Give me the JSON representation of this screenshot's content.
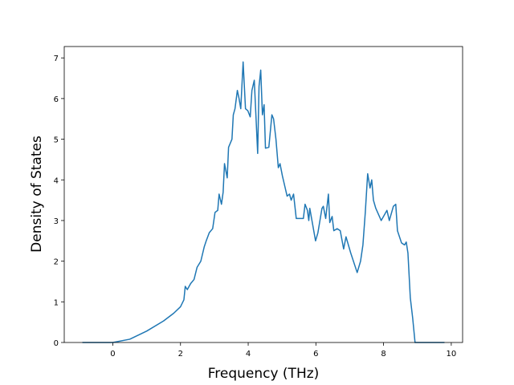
{
  "chart_data": {
    "type": "line",
    "x_label": "Frequency (THz)",
    "y_label": "Density of States",
    "x": [
      -0.9,
      0,
      0.5,
      1.0,
      1.5,
      1.8,
      2.0,
      2.1,
      2.14,
      2.2,
      2.3,
      2.4,
      2.49,
      2.6,
      2.7,
      2.76,
      2.85,
      2.95,
      3.02,
      3.1,
      3.14,
      3.21,
      3.26,
      3.3,
      3.38,
      3.42,
      3.52,
      3.56,
      3.61,
      3.68,
      3.73,
      3.78,
      3.85,
      3.92,
      3.99,
      4.06,
      4.11,
      4.18,
      4.28,
      4.32,
      4.37,
      4.42,
      4.47,
      4.51,
      4.61,
      4.7,
      4.75,
      4.82,
      4.89,
      4.94,
      5.01,
      5.08,
      5.15,
      5.22,
      5.27,
      5.34,
      5.42,
      5.63,
      5.68,
      5.75,
      5.79,
      5.82,
      5.99,
      6.06,
      6.18,
      6.22,
      6.29,
      6.37,
      6.41,
      6.48,
      6.53,
      6.63,
      6.72,
      6.82,
      6.89,
      7.03,
      7.22,
      7.32,
      7.39,
      7.46,
      7.53,
      7.6,
      7.65,
      7.7,
      7.77,
      7.93,
      8.1,
      8.17,
      8.29,
      8.36,
      8.41,
      8.53,
      8.62,
      8.67,
      8.72,
      8.79,
      8.86,
      8.93,
      9.8
    ],
    "series": [
      {
        "color": "#1f77b4",
        "values": [
          0,
          0,
          0.08,
          0.28,
          0.53,
          0.72,
          0.88,
          1.05,
          1.38,
          1.3,
          1.45,
          1.55,
          1.85,
          2.0,
          2.35,
          2.5,
          2.7,
          2.8,
          3.2,
          3.25,
          3.65,
          3.4,
          3.7,
          4.4,
          4.05,
          4.8,
          5.0,
          5.6,
          5.75,
          6.2,
          6.0,
          5.75,
          6.9,
          5.75,
          5.7,
          5.55,
          6.2,
          6.45,
          4.65,
          6.3,
          6.7,
          5.6,
          5.85,
          4.78,
          4.8,
          5.6,
          5.5,
          5.0,
          4.3,
          4.4,
          4.1,
          3.85,
          3.6,
          3.65,
          3.5,
          3.65,
          3.05,
          3.05,
          3.4,
          3.25,
          3.0,
          3.3,
          2.5,
          2.7,
          3.3,
          3.35,
          3.05,
          3.65,
          2.95,
          3.1,
          2.75,
          2.8,
          2.75,
          2.3,
          2.6,
          2.2,
          1.72,
          2.0,
          2.4,
          3.2,
          4.15,
          3.8,
          4.0,
          3.5,
          3.3,
          3.0,
          3.25,
          3.0,
          3.35,
          3.4,
          2.75,
          2.45,
          2.4,
          2.47,
          2.2,
          1.1,
          0.6,
          0,
          0
        ]
      }
    ],
    "xlim": [
      -1.435,
      10.335
    ],
    "xticks": [
      0,
      2,
      4,
      6,
      8,
      10
    ],
    "ylim": [
      0,
      7.28
    ],
    "yticks": [
      0,
      1,
      2,
      3,
      4,
      5,
      6,
      7
    ]
  }
}
